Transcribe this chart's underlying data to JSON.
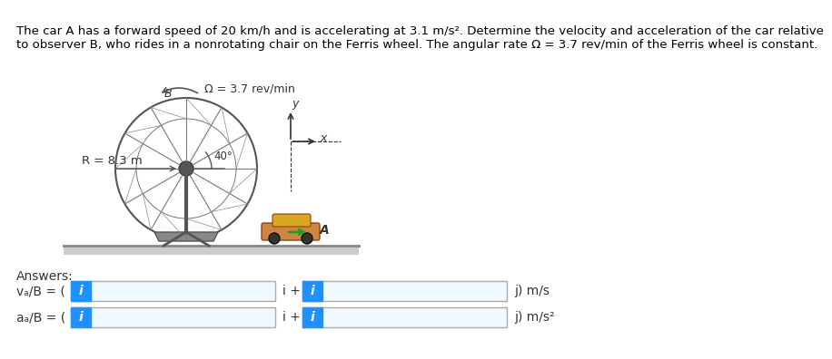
{
  "title_line1": "The car A has a forward speed of 20 km/h and is accelerating at 3.1 m/s². Determine the velocity and acceleration of the car relative",
  "title_line2": "to observer B, who rides in a nonrotating chair on the Ferris wheel. The angular rate Ω = 3.7 rev/min of the Ferris wheel is constant.",
  "omega_label": "Ω = 3.7 rev/min",
  "R_label": "R = 8.3 m",
  "angle_label": "40°",
  "B_label": "B",
  "A_label": "A",
  "answers_label": "Answers:",
  "va_label": "vₐ/B = (",
  "aa_label": "aₐ/B = (",
  "i_plus": "i +",
  "j_ms": "j) m/s",
  "j_ms2": "j) m/s²",
  "box_color": "#e8f4f8",
  "box_border": "#aaaaaa",
  "info_color": "#1e90ff",
  "bg_color": "#ffffff",
  "text_color": "#000000",
  "title_fontsize": 9.5,
  "label_fontsize": 9.5
}
